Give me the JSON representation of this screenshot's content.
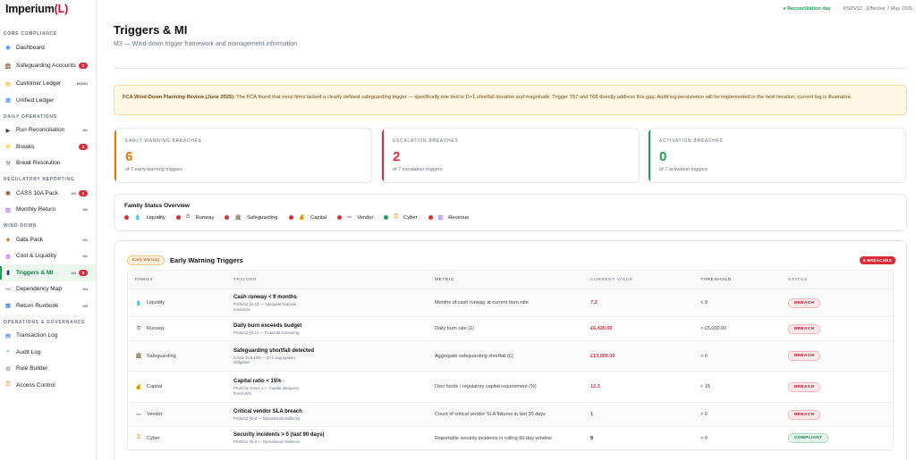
{
  "app": {
    "logo_name": "Imperium",
    "logo_lpar": "(",
    "logo_letter": "L",
    "logo_rpar": ")"
  },
  "topbar": {
    "recon_label": "● Reconciliation day",
    "ps_label": "PS25/12 · Effective 7 May 2026"
  },
  "sidebar": {
    "sections": [
      {
        "title": "CORE COMPLIANCE",
        "items": [
          {
            "label": "Dashboard",
            "icon": "grid-icon"
          },
          {
            "label": "Safeguarding Accounts",
            "icon": "bank-icon",
            "count": "1"
          },
          {
            "label": "Customer Ledger",
            "icon": "ledger-icon",
            "tag": "MONH"
          },
          {
            "label": "Unified Ledger",
            "icon": "book-icon"
          }
        ]
      },
      {
        "title": "DAILY OPERATIONS",
        "items": [
          {
            "label": "Run Reconciliation",
            "icon": "play-icon",
            "tag": "M2"
          },
          {
            "label": "Breaks",
            "icon": "bolt-icon",
            "count": "3"
          },
          {
            "label": "Break Resolution",
            "icon": "wrench-icon"
          }
        ]
      },
      {
        "title": "REGULATORY REPORTING",
        "items": [
          {
            "label": "CASS 10A Pack",
            "icon": "doc-icon",
            "tag": "M3",
            "count": "1"
          },
          {
            "label": "Monthly Return",
            "icon": "chart-icon",
            "tag": "M6"
          }
        ]
      },
      {
        "title": "WIND-DOWN",
        "items": [
          {
            "label": "Data Pack",
            "icon": "package-icon",
            "tag": "M1"
          },
          {
            "label": "Cost & Liquidity",
            "icon": "coins-icon",
            "tag": "M2"
          },
          {
            "label": "Triggers & MI",
            "icon": "trigger-icon",
            "tag": "M3",
            "count": "6"
          },
          {
            "label": "Dependency Map",
            "icon": "link-icon",
            "tag": "M4"
          },
          {
            "label": "Return Runbook",
            "icon": "runbook-icon",
            "tag": "M5"
          }
        ]
      },
      {
        "title": "OPERATIONS & GOVERNANCE",
        "items": [
          {
            "label": "Transaction Log",
            "icon": "log-icon"
          },
          {
            "label": "Audit Log",
            "icon": "search-icon"
          },
          {
            "label": "Rule Builder",
            "icon": "gear-icon"
          },
          {
            "label": "Access Control",
            "icon": "lock-icon"
          }
        ]
      }
    ]
  },
  "page": {
    "title": "Triggers & MI",
    "subtitle": "M3 — Wind-down trigger framework and management information"
  },
  "alert": {
    "bold": "FCA Wind-Down Planning Review (June 2025):",
    "text": " The FCA found that most firms lacked a clearly defined safeguarding trigger — specifically one tied to D+1 shortfall duration and magnitude. Trigger T07 and T08 directly address this gap. Audit log persistence will be implemented in the next iteration; current log is illustrative."
  },
  "kpis": [
    {
      "title": "EARLY WARNING BREACHES",
      "value": "6",
      "sub": "of 7 early-warning triggers"
    },
    {
      "title": "ESCALATION BREACHES",
      "value": "2",
      "sub": "of 7 escalation triggers"
    },
    {
      "title": "ACTIVATION BREACHES",
      "value": "0",
      "sub": "of 7 activation triggers"
    }
  ],
  "family": {
    "title": "Family Status Overview",
    "items": [
      {
        "label": "Liquidity",
        "icon": "droplet-icon",
        "status_color": "#d92d3a"
      },
      {
        "label": "Runway",
        "icon": "stopwatch-icon",
        "status_color": "#d92d3a"
      },
      {
        "label": "Safeguarding",
        "icon": "bank-icon",
        "status_color": "#d92d3a"
      },
      {
        "label": "Capital",
        "icon": "moneybag-icon",
        "status_color": "#d92d3a"
      },
      {
        "label": "Vendor",
        "icon": "link-icon",
        "status_color": "#d92d3a"
      },
      {
        "label": "Cyber",
        "icon": "lock-icon",
        "status_color": "#1f9d55"
      },
      {
        "label": "Revenue",
        "icon": "chart-icon",
        "status_color": "#d92d3a"
      }
    ]
  },
  "early_warning": {
    "badge": "Early Warning",
    "title": "Early Warning Triggers",
    "breach_count": "6 BREACHES",
    "columns": [
      "FAMILY",
      "TRIGGER",
      "METRIC",
      "CURRENT VALUE",
      "THRESHOLD",
      "STATUS"
    ],
    "rows": [
      {
        "family": "Liquidity",
        "icon": "droplet-icon",
        "name": "Cash runway < 9 months",
        "sub": "PS25/12 §4.12 — Adequate financial resources",
        "metric": "Months of cash runway at current burn rate",
        "value": "7.2",
        "threshold": "< 9",
        "status": "BREACH"
      },
      {
        "family": "Runway",
        "icon": "stopwatch-icon",
        "name": "Daily burn exceeds budget",
        "sub": "PS25/12 §4.11 — Financial monitoring",
        "metric": "Daily burn rate (£)",
        "value": "£6,420.00",
        "threshold": "> £5,000.00",
        "status": "BREACH"
      },
      {
        "family": "Safeguarding",
        "icon": "bank-icon",
        "name": "Safeguarding shortfall detected",
        "sub": "CASS 15.8.10R — D+1 segregation obligation",
        "metric": "Aggregate safeguarding shortfall (£)",
        "value": "£13,000.00",
        "threshold": "> 0",
        "status": "BREACH"
      },
      {
        "family": "Capital",
        "icon": "moneybag-icon",
        "name": "Capital ratio < 15%",
        "sub": "PS25/12 Annex 1 — Capital adequacy thresholds",
        "metric": "Own funds / regulatory capital requirement (%)",
        "value": "12.3",
        "threshold": "< 15",
        "status": "BREACH"
      },
      {
        "family": "Vendor",
        "icon": "link-icon",
        "name": "Critical vendor SLA breach",
        "sub": "PS25/12 §5.8 — Operational resilience",
        "metric": "Count of critical vendor SLA failures in last 30 days",
        "value": "1",
        "threshold": "> 0",
        "status": "BREACH"
      },
      {
        "family": "Cyber",
        "icon": "lock-icon",
        "name": "Security incidents > 0 (last 90 days)",
        "sub": "PS25/12 §5.9 — Operational resilience",
        "metric": "Reportable security incidents in rolling 90-day window",
        "value": "0",
        "threshold": "> 0",
        "status": "COMPLIANT"
      }
    ]
  }
}
